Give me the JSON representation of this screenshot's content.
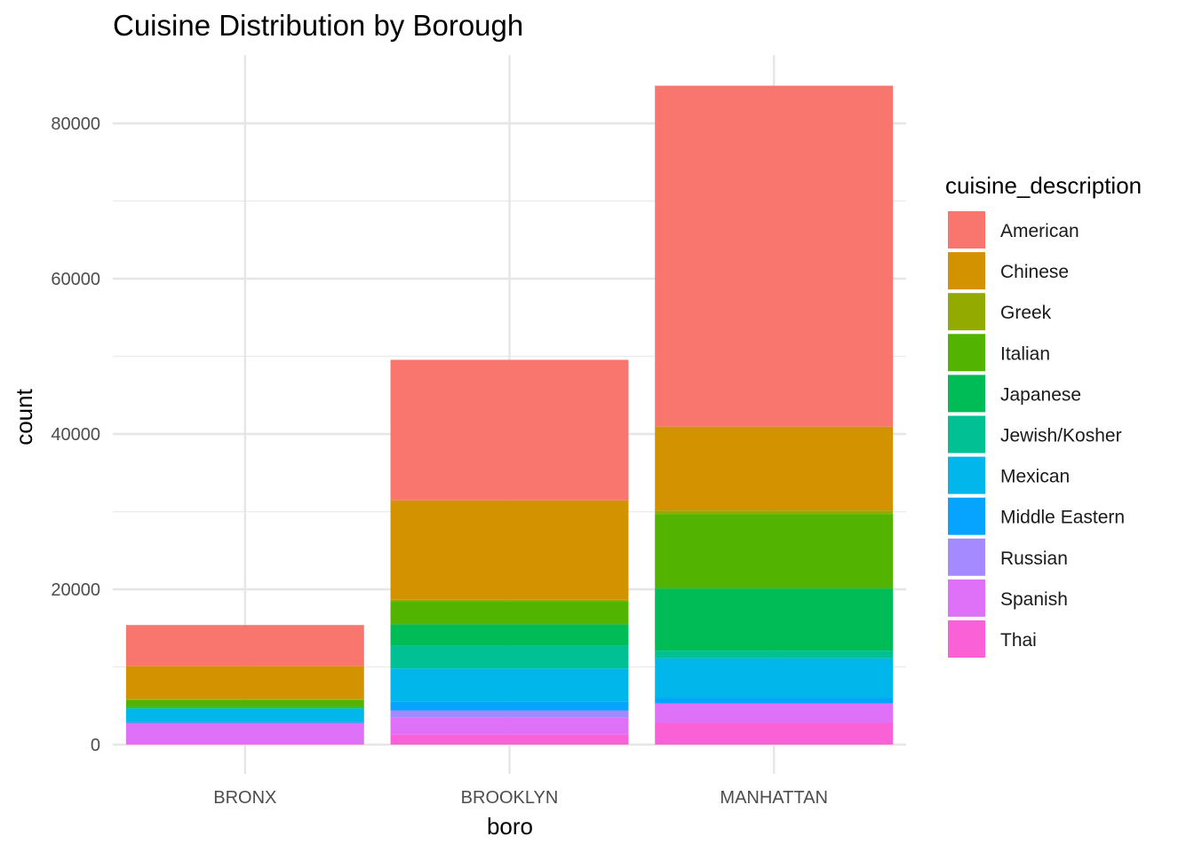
{
  "chart_data": {
    "type": "bar",
    "stacked": true,
    "title": "Cuisine Distribution by Borough",
    "xlabel": "boro",
    "ylabel": "count",
    "categories": [
      "BRONX",
      "BROOKLYN",
      "MANHATTAN"
    ],
    "ylim": [
      0,
      85000
    ],
    "yticks": [
      "0",
      "20000",
      "40000",
      "60000",
      "80000"
    ],
    "legend_title": "cuisine_description",
    "legend_position": "right",
    "grid": true,
    "series": [
      {
        "name": "American",
        "color": "#F8766D",
        "values": [
          5300,
          18100,
          43900
        ]
      },
      {
        "name": "Chinese",
        "color": "#D39200",
        "values": [
          4200,
          12800,
          10800
        ]
      },
      {
        "name": "Greek",
        "color": "#93AA00",
        "values": [
          150,
          250,
          450
        ]
      },
      {
        "name": "Italian",
        "color": "#53B400",
        "values": [
          900,
          2900,
          9600
        ]
      },
      {
        "name": "Japanese",
        "color": "#00BC56",
        "values": [
          150,
          2800,
          8000
        ]
      },
      {
        "name": "Jewish/Kosher",
        "color": "#00C094",
        "values": [
          100,
          2900,
          1000
        ]
      },
      {
        "name": "Mexican",
        "color": "#00B6EB",
        "values": [
          1700,
          4300,
          5100
        ]
      },
      {
        "name": "Middle Eastern",
        "color": "#06A4FF",
        "values": [
          100,
          1100,
          700
        ]
      },
      {
        "name": "Russian",
        "color": "#A58AFF",
        "values": [
          0,
          900,
          0
        ]
      },
      {
        "name": "Spanish",
        "color": "#DF70F8",
        "values": [
          2700,
          2200,
          2500
        ]
      },
      {
        "name": "Thai",
        "color": "#FB61D7",
        "values": [
          100,
          1300,
          2800
        ]
      }
    ]
  }
}
